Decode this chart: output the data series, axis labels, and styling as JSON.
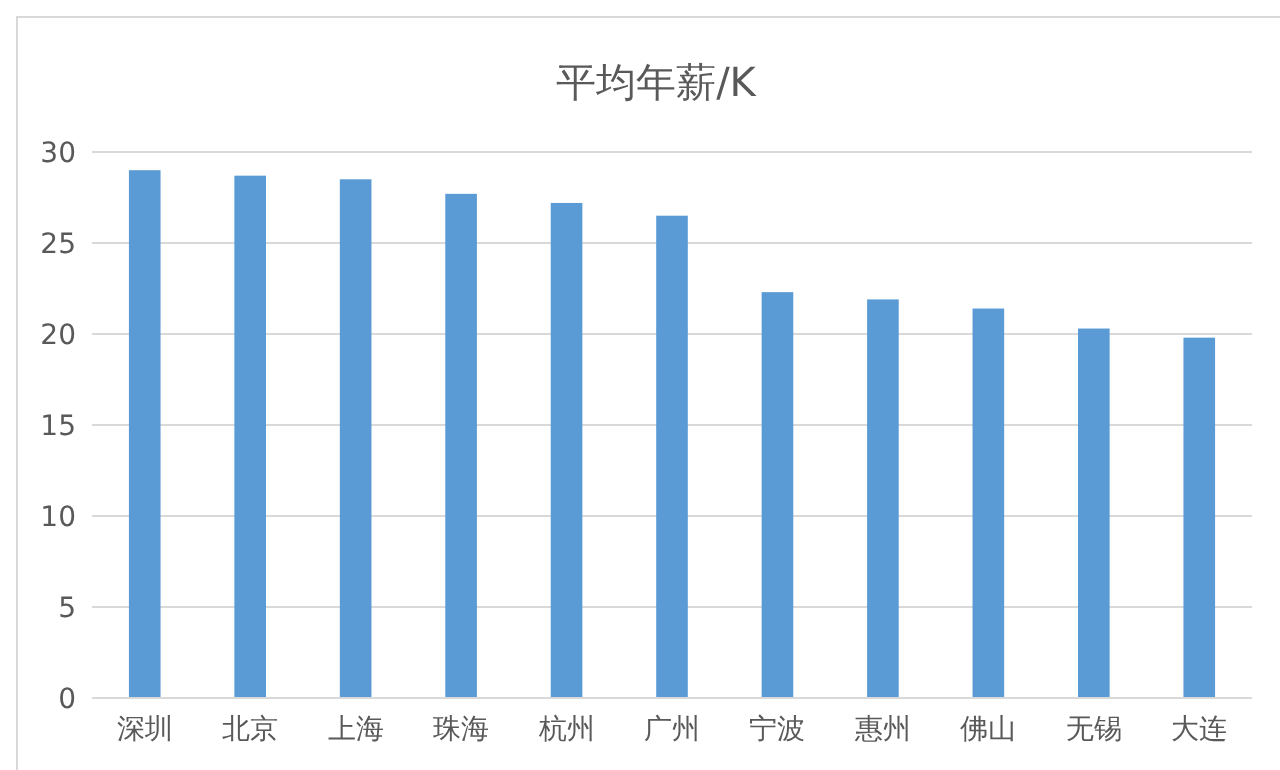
{
  "chart_data": {
    "type": "bar",
    "title": "平均年薪/K",
    "categories": [
      "深圳",
      "北京",
      "上海",
      "珠海",
      "杭州",
      "广州",
      "宁波",
      "惠州",
      "佛山",
      "无锡",
      "大连"
    ],
    "values": [
      29.0,
      28.7,
      28.5,
      27.7,
      27.2,
      26.5,
      22.3,
      21.9,
      21.4,
      20.3,
      19.8
    ],
    "color": "#5b9bd5",
    "ylim": [
      0,
      30
    ],
    "yticks": [
      0,
      5,
      10,
      15,
      20,
      25,
      30
    ],
    "grid": "y"
  }
}
